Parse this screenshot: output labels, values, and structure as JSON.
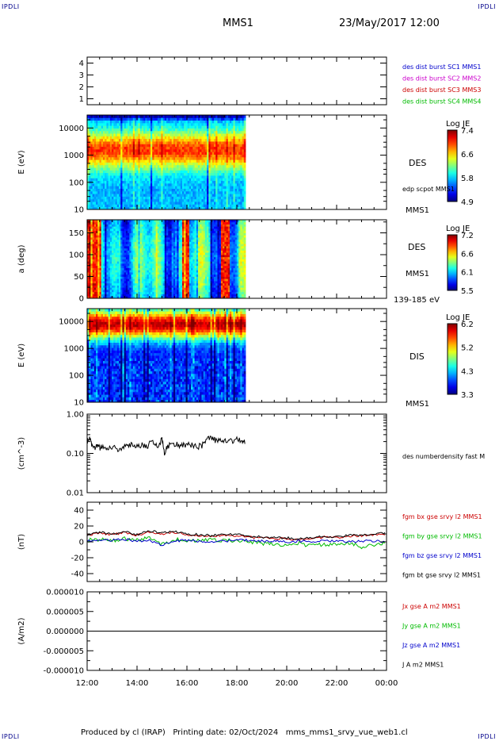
{
  "corners": {
    "tl": "IPDLI",
    "tr": "IPDLI",
    "bl": "IPDLI",
    "br": "IPDLI"
  },
  "header": {
    "spacecraft": "MMS1",
    "datetime": "23/May/2017 12:00"
  },
  "footer": "Produced by cl (IRAP)   Printing date: 02/Oct/2024   mms_mms1_srvy_vue_web1.cl",
  "time_axis": {
    "labels": [
      "12:00",
      "14:00",
      "16:00",
      "18:00",
      "20:00",
      "22:00",
      "00:00"
    ],
    "hours": [
      12,
      14,
      16,
      18,
      20,
      22,
      24
    ]
  },
  "panels": {
    "availability": {
      "yticks": [
        "4",
        "3",
        "2",
        "1"
      ],
      "labels": [
        {
          "text": "des dist burst SC1 MMS1",
          "color": "#0000cc"
        },
        {
          "text": "des dist burst SC2 MMS2",
          "color": "#cc00cc"
        },
        {
          "text": "des dist burst SC3 MMS3",
          "color": "#cc0000"
        },
        {
          "text": "des dist burst SC4 MMS4",
          "color": "#00bb00"
        }
      ]
    },
    "des_energy": {
      "ylabel": "E (eV)",
      "yticks": [
        "10000",
        "1000",
        "100",
        "10"
      ],
      "label1": "DES",
      "label2": "edp scpot MMS1",
      "label3": "MMS1",
      "cbar_title": "Log JE",
      "cbar_ticks": [
        "7.4",
        "6.6",
        "5.8",
        "4.9"
      ]
    },
    "des_pitch": {
      "ylabel": "a (deg)",
      "yticks": [
        "150",
        "100",
        "50",
        "0"
      ],
      "label1": "DES",
      "label2": "MMS1",
      "label3": "139-185 eV",
      "cbar_title": "Log JE",
      "cbar_ticks": [
        "7.2",
        "6.6",
        "6.1",
        "5.5"
      ]
    },
    "dis_energy": {
      "ylabel": "E (eV)",
      "yticks": [
        "10000",
        "1000",
        "100",
        "10"
      ],
      "label1": "DIS",
      "label2": "MMS1",
      "cbar_title": "Log JE",
      "cbar_ticks": [
        "6.2",
        "5.2",
        "4.3",
        "3.3"
      ]
    },
    "density": {
      "ylabel": "(cm^-3)",
      "yticks": [
        "1.00",
        "0.10",
        "0.01"
      ],
      "label": "des numberdensity fast M"
    },
    "bfield": {
      "ylabel": "(nT)",
      "yticks": [
        "40",
        "20",
        "0",
        "-20",
        "-40"
      ],
      "labels": [
        {
          "text": "fgm bx gse srvy l2 MMS1",
          "color": "#cc0000"
        },
        {
          "text": "fgm by gse srvy l2 MMS1",
          "color": "#00bb00"
        },
        {
          "text": "fgm bz gse srvy l2 MMS1",
          "color": "#0000cc"
        },
        {
          "text": "fgm bt gse srvy l2 MMS1",
          "color": "#000000"
        }
      ]
    },
    "current": {
      "ylabel": "(A/m2)",
      "yticks": [
        "0.000010",
        "0.000005",
        "0.000000",
        "-0.000005",
        "-0.000010"
      ],
      "labels": [
        {
          "text": "Jx gse A m2 MMS1",
          "color": "#cc0000"
        },
        {
          "text": "Jy gse A m2 MMS1",
          "color": "#00bb00"
        },
        {
          "text": "Jz gse A m2 MMS1",
          "color": "#0000cc"
        },
        {
          "text": "J A m2 MMS1",
          "color": "#000000"
        }
      ]
    }
  },
  "chart_data": [
    {
      "type": "heatmap",
      "name_ref": "DES energy spectrogram",
      "x_range_hours": [
        12,
        18.35
      ],
      "ylim": [
        10,
        30000
      ],
      "yscale": "log",
      "colorbar_range": [
        4.9,
        7.4
      ]
    },
    {
      "type": "heatmap",
      "name_ref": "DES pitch angle",
      "x_range_hours": [
        12,
        18.35
      ],
      "ylim": [
        0,
        180
      ],
      "colorbar_range": [
        5.5,
        7.2
      ]
    },
    {
      "type": "heatmap",
      "name_ref": "DIS energy spectrogram",
      "x_range_hours": [
        12,
        18.35
      ],
      "ylim": [
        10,
        30000
      ],
      "yscale": "log",
      "colorbar_range": [
        3.3,
        6.2
      ]
    },
    {
      "type": "line",
      "ylim": [
        0.01,
        1.0
      ],
      "yscale": "log",
      "x": [
        12.0,
        12.1,
        12.2,
        12.3,
        12.4,
        12.5,
        12.6,
        12.8,
        13.0,
        13.2,
        13.4,
        13.6,
        13.8,
        14.0,
        14.2,
        14.4,
        14.6,
        14.8,
        15.0,
        15.1,
        15.2,
        15.4,
        15.6,
        15.8,
        16.0,
        16.2,
        16.4,
        16.6,
        16.8,
        17.0,
        17.2,
        17.4,
        17.6,
        17.8,
        18.0,
        18.2,
        18.35
      ],
      "series": [
        {
          "values": [
            0.2,
            0.25,
            0.15,
            0.13,
            0.17,
            0.14,
            0.16,
            0.13,
            0.15,
            0.13,
            0.14,
            0.15,
            0.17,
            0.16,
            0.17,
            0.15,
            0.21,
            0.15,
            0.23,
            0.1,
            0.14,
            0.19,
            0.17,
            0.16,
            0.16,
            0.17,
            0.15,
            0.16,
            0.23,
            0.26,
            0.2,
            0.23,
            0.22,
            0.21,
            0.23,
            0.2,
            0.21
          ]
        }
      ]
    },
    {
      "type": "line",
      "ylim": [
        -50,
        50
      ],
      "x": [
        12.0,
        12.5,
        13.0,
        13.5,
        14.0,
        14.5,
        15.0,
        15.5,
        16.0,
        16.5,
        17.0,
        17.5,
        18.0,
        18.5,
        19.0,
        19.5,
        20.0,
        20.5,
        21.0,
        21.5,
        22.0,
        22.5,
        23.0,
        23.5,
        24.0
      ],
      "series": [
        {
          "name": "fgm bx gse srvy l2 MMS1",
          "values": [
            8,
            11,
            9,
            12,
            8,
            13,
            10,
            12,
            9,
            8,
            7,
            9,
            8,
            6,
            5,
            4,
            4,
            3,
            4,
            6,
            5,
            7,
            8,
            9,
            10
          ]
        },
        {
          "name": "fgm by gse srvy l2 MMS1",
          "values": [
            2,
            3,
            1,
            4,
            2,
            5,
            -3,
            3,
            2,
            1,
            3,
            2,
            1,
            0,
            -2,
            -3,
            -4,
            -2,
            -5,
            -3,
            -4,
            -2,
            -6,
            -3,
            -2
          ]
        },
        {
          "name": "fgm bz gse srvy l2 MMS1",
          "values": [
            1,
            2,
            2,
            3,
            1,
            2,
            -4,
            1,
            2,
            1,
            0,
            1,
            2,
            2,
            1,
            1,
            0,
            1,
            0,
            1,
            1,
            0,
            1,
            1,
            0
          ]
        },
        {
          "name": "fgm bt gse srvy l2 MMS1",
          "values": [
            9,
            12,
            10,
            13,
            9,
            14,
            11,
            13,
            10,
            9,
            8,
            10,
            9,
            7,
            6,
            5,
            5,
            4,
            5,
            7,
            6,
            8,
            9,
            10,
            11
          ]
        }
      ]
    },
    {
      "type": "line",
      "ylim": [
        -1e-05,
        1e-05
      ],
      "x": [
        12,
        24
      ],
      "series": [
        {
          "name": "J A m2 MMS1",
          "values": [
            0,
            0
          ]
        }
      ]
    }
  ]
}
